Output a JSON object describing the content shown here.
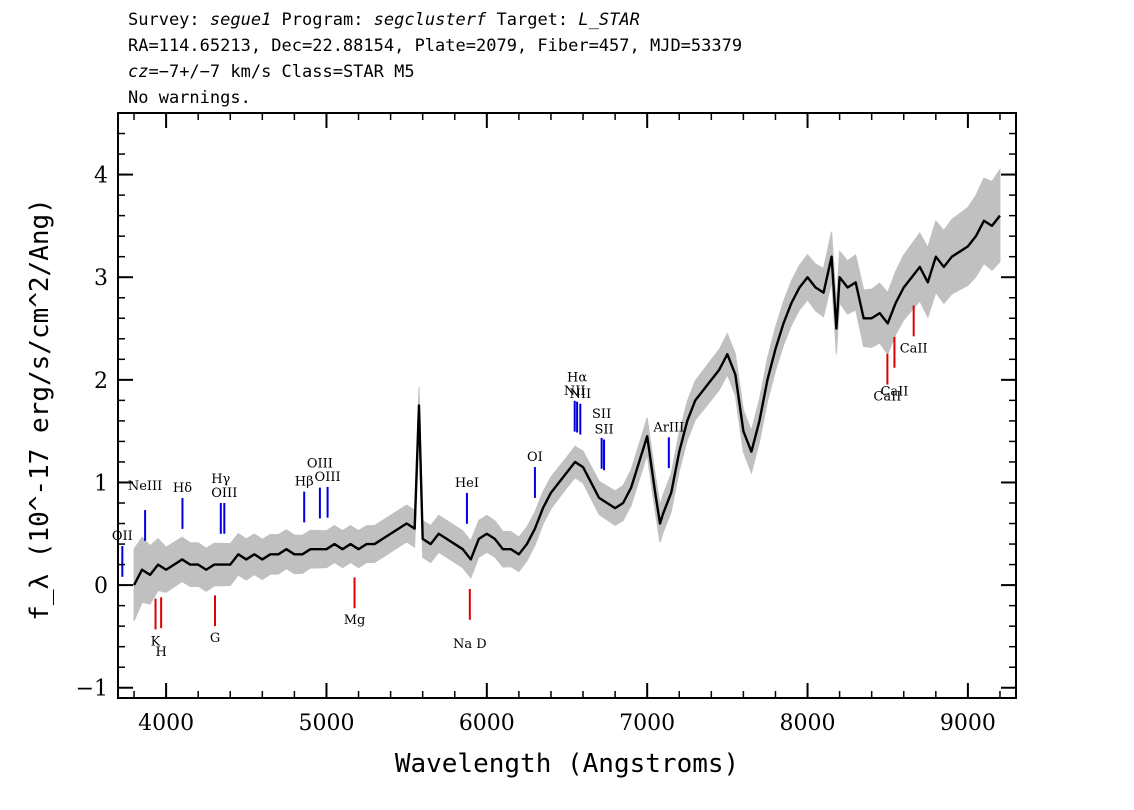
{
  "header": {
    "line1": {
      "survey_label": "Survey: ",
      "survey": "segue1",
      "program_label": " Program: ",
      "program": "segclusterf",
      "target_label": " Target: ",
      "target": "L_STAR"
    },
    "line2": "RA=114.65213, Dec=22.88154, Plate=2079, Fiber=457, MJD=53379",
    "line3": {
      "cz_prefix": "cz",
      "cz_rest": "=−7+/−7 km/s Class=STAR M5"
    },
    "line4": "No warnings."
  },
  "chart_data": {
    "type": "line",
    "xlabel": "Wavelength (Angstroms)",
    "ylabel": "f_λ (10^-17 erg/s/cm^2/Ang)",
    "xlim": [
      3700,
      9300
    ],
    "ylim": [
      -1.1,
      4.6
    ],
    "x_ticks": [
      4000,
      5000,
      6000,
      7000,
      8000,
      9000
    ],
    "y_ticks": [
      -1,
      0,
      1,
      2,
      3,
      4
    ],
    "grid": false,
    "colors": {
      "flux": "#000000",
      "error_band": "#c0c0c0",
      "emission": "#0000dd",
      "absorption": "#dd0000"
    },
    "series": [
      {
        "role": "flux",
        "x": [
          3800,
          3850,
          3900,
          3950,
          4000,
          4050,
          4100,
          4150,
          4200,
          4250,
          4300,
          4350,
          4400,
          4450,
          4500,
          4550,
          4600,
          4650,
          4700,
          4750,
          4800,
          4850,
          4900,
          4950,
          5000,
          5050,
          5100,
          5150,
          5200,
          5250,
          5300,
          5350,
          5400,
          5450,
          5500,
          5550,
          5577,
          5600,
          5650,
          5700,
          5750,
          5800,
          5850,
          5900,
          5950,
          6000,
          6050,
          6100,
          6150,
          6200,
          6250,
          6300,
          6350,
          6400,
          6450,
          6500,
          6550,
          6600,
          6650,
          6700,
          6750,
          6800,
          6850,
          6900,
          6950,
          7000,
          7050,
          7080,
          7100,
          7150,
          7200,
          7250,
          7300,
          7350,
          7400,
          7450,
          7500,
          7550,
          7600,
          7650,
          7700,
          7750,
          7800,
          7850,
          7900,
          7950,
          8000,
          8050,
          8100,
          8150,
          8180,
          8200,
          8250,
          8300,
          8350,
          8400,
          8450,
          8500,
          8550,
          8600,
          8650,
          8700,
          8750,
          8800,
          8850,
          8900,
          8950,
          9000,
          9050,
          9100,
          9150,
          9200
        ],
        "y": [
          0.0,
          0.15,
          0.1,
          0.2,
          0.15,
          0.2,
          0.25,
          0.2,
          0.2,
          0.15,
          0.2,
          0.2,
          0.2,
          0.3,
          0.25,
          0.3,
          0.25,
          0.3,
          0.3,
          0.35,
          0.3,
          0.3,
          0.35,
          0.35,
          0.35,
          0.4,
          0.35,
          0.4,
          0.35,
          0.4,
          0.4,
          0.45,
          0.5,
          0.55,
          0.6,
          0.55,
          1.75,
          0.45,
          0.4,
          0.5,
          0.45,
          0.4,
          0.35,
          0.25,
          0.45,
          0.5,
          0.45,
          0.35,
          0.35,
          0.3,
          0.4,
          0.55,
          0.75,
          0.9,
          1.0,
          1.1,
          1.2,
          1.15,
          1.0,
          0.85,
          0.8,
          0.75,
          0.8,
          0.95,
          1.2,
          1.45,
          0.9,
          0.6,
          0.7,
          0.9,
          1.3,
          1.6,
          1.8,
          1.9,
          2.0,
          2.1,
          2.25,
          2.05,
          1.5,
          1.3,
          1.6,
          2.0,
          2.3,
          2.55,
          2.75,
          2.9,
          3.0,
          2.9,
          2.85,
          3.2,
          2.5,
          3.0,
          2.9,
          2.95,
          2.6,
          2.6,
          2.65,
          2.55,
          2.75,
          2.9,
          3.0,
          3.1,
          2.95,
          3.2,
          3.1,
          3.2,
          3.25,
          3.3,
          3.4,
          3.55,
          3.5,
          3.6
        ]
      },
      {
        "role": "error",
        "x": [
          3800,
          4000,
          4500,
          5000,
          5500,
          6000,
          6500,
          7000,
          7500,
          8000,
          8500,
          9000,
          9200
        ],
        "y": [
          0.35,
          0.22,
          0.2,
          0.18,
          0.18,
          0.18,
          0.15,
          0.18,
          0.2,
          0.22,
          0.3,
          0.38,
          0.45
        ]
      }
    ],
    "line_markers": [
      {
        "label": "OII",
        "x": 3727,
        "kind": "emission"
      },
      {
        "label": "NeIII",
        "x": 3869,
        "kind": "emission"
      },
      {
        "label": "K",
        "x": 3934,
        "kind": "absorption"
      },
      {
        "label": "H",
        "x": 3969,
        "kind": "absorption"
      },
      {
        "label": "Hδ",
        "x": 4102,
        "kind": "emission"
      },
      {
        "label": "G",
        "x": 4305,
        "kind": "absorption"
      },
      {
        "label": "Hγ",
        "x": 4341,
        "kind": "emission"
      },
      {
        "label": "OIII",
        "x": 4363,
        "kind": "emission"
      },
      {
        "label": "Hβ",
        "x": 4861,
        "kind": "emission"
      },
      {
        "label": "OIII",
        "x": 4959,
        "kind": "emission"
      },
      {
        "label": "OIII",
        "x": 5007,
        "kind": "emission"
      },
      {
        "label": "Mg",
        "x": 5175,
        "kind": "absorption"
      },
      {
        "label": "HeI",
        "x": 5876,
        "kind": "emission"
      },
      {
        "label": "Na D",
        "x": 5894,
        "kind": "absorption"
      },
      {
        "label": "OI",
        "x": 6300,
        "kind": "emission"
      },
      {
        "label": "NII",
        "x": 6548,
        "kind": "emission"
      },
      {
        "label": "Hα",
        "x": 6563,
        "kind": "emission"
      },
      {
        "label": "NII",
        "x": 6583,
        "kind": "emission"
      },
      {
        "label": "SII",
        "x": 6716,
        "kind": "emission"
      },
      {
        "label": "SII",
        "x": 6731,
        "kind": "emission"
      },
      {
        "label": "ArIII",
        "x": 7135,
        "kind": "emission"
      },
      {
        "label": "CaII",
        "x": 8498,
        "kind": "absorption"
      },
      {
        "label": "CaII",
        "x": 8542,
        "kind": "absorption"
      },
      {
        "label": "CaII",
        "x": 8662,
        "kind": "absorption"
      }
    ]
  }
}
